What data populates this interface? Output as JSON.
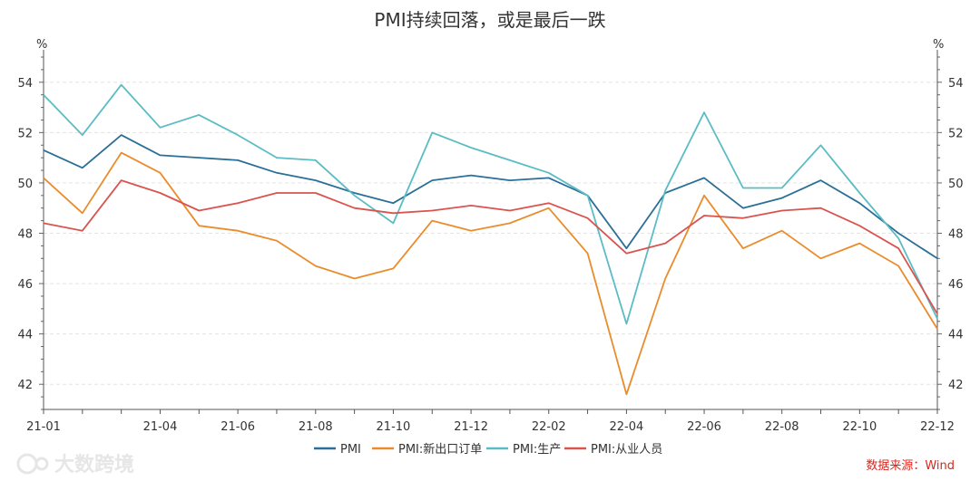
{
  "chart_data": {
    "type": "line",
    "title": "PMI持续回落，或是最后一跌",
    "unit_left": "%",
    "unit_right": "%",
    "ylim": [
      41,
      55
    ],
    "yticks": [
      42,
      44,
      46,
      48,
      50,
      52,
      54
    ],
    "xlabels": [
      "21-01",
      "21-04",
      "21-06",
      "21-08",
      "21-10",
      "21-12",
      "22-02",
      "22-04",
      "22-06",
      "22-08",
      "22-10",
      "22-12"
    ],
    "x": [
      "21-01",
      "21-02",
      "21-03",
      "21-04",
      "21-05",
      "21-06",
      "21-07",
      "21-08",
      "21-09",
      "21-10",
      "21-11",
      "21-12",
      "22-01",
      "22-02",
      "22-03",
      "22-04",
      "22-05",
      "22-06",
      "22-07",
      "22-08",
      "22-09",
      "22-10",
      "22-11",
      "22-12"
    ],
    "series": [
      {
        "name": "PMI",
        "color": "#2a6f97",
        "values": [
          51.3,
          50.6,
          51.9,
          51.1,
          51.0,
          50.9,
          50.4,
          50.1,
          49.6,
          49.2,
          50.1,
          50.3,
          50.1,
          50.2,
          49.5,
          47.4,
          49.6,
          50.2,
          49.0,
          49.4,
          50.1,
          49.2,
          48.0,
          47.0
        ]
      },
      {
        "name": "PMI:新出口订单",
        "color": "#ea8c2c",
        "values": [
          50.2,
          48.8,
          51.2,
          50.4,
          48.3,
          48.1,
          47.7,
          46.7,
          46.2,
          46.6,
          48.5,
          48.1,
          48.4,
          49.0,
          47.2,
          41.6,
          46.2,
          49.5,
          47.4,
          48.1,
          47.0,
          47.6,
          46.7,
          44.2
        ]
      },
      {
        "name": "PMI:生产",
        "color": "#5bbcc4",
        "values": [
          53.5,
          51.9,
          53.9,
          52.2,
          52.7,
          51.9,
          51.0,
          50.9,
          49.5,
          48.4,
          52.0,
          51.4,
          50.9,
          50.4,
          49.5,
          44.4,
          49.7,
          52.8,
          49.8,
          49.8,
          51.5,
          49.6,
          47.8,
          44.6
        ]
      },
      {
        "name": "PMI:从业人员",
        "color": "#d9534f",
        "values": [
          48.4,
          48.1,
          50.1,
          49.6,
          48.9,
          49.2,
          49.6,
          49.6,
          49.0,
          48.8,
          48.9,
          49.1,
          48.9,
          49.2,
          48.6,
          47.2,
          47.6,
          48.7,
          48.6,
          48.9,
          49.0,
          48.3,
          47.4,
          44.8
        ]
      }
    ],
    "legend_position": "bottom",
    "grid": true
  },
  "source_text": "数据来源：Wind",
  "watermark_text": "大数跨境"
}
